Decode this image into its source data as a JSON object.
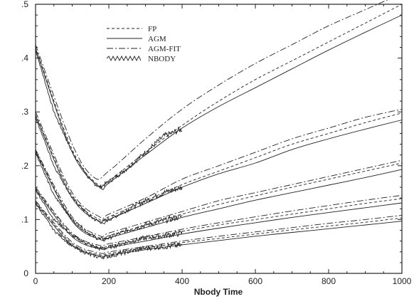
{
  "chart_data": {
    "type": "line",
    "title": "",
    "xlabel": "Nbody Time",
    "ylabel": "",
    "xlim": [
      0,
      1000
    ],
    "ylim": [
      0,
      0.5
    ],
    "x_ticks": [
      0,
      200,
      400,
      600,
      800,
      1000
    ],
    "y_ticks": [
      0,
      0.1,
      0.2,
      0.3,
      0.4,
      0.5
    ],
    "x_tick_labels": [
      "0",
      "200",
      "400",
      "600",
      "800",
      "1000"
    ],
    "y_tick_labels": [
      "0",
      ".1",
      ".2",
      ".3",
      ".4",
      ".5"
    ],
    "grid": false,
    "legend_position": "top-left",
    "legend": [
      {
        "key": "fp",
        "label": "FP",
        "style": "dashed"
      },
      {
        "key": "agm",
        "label": "AGM",
        "style": "solid"
      },
      {
        "key": "agmfit",
        "label": "AGM-FIT",
        "style": "dash-dot"
      },
      {
        "key": "nbody",
        "label": "NBODY",
        "style": "noisy"
      }
    ],
    "groups": [
      {
        "agmfit": {
          "x": [
            0,
            100,
            160,
            200,
            300,
            400,
            500,
            600,
            700,
            800,
            900,
            1000
          ],
          "y": [
            0.425,
            0.24,
            0.178,
            0.19,
            0.25,
            0.305,
            0.35,
            0.39,
            0.425,
            0.46,
            0.49,
            0.52
          ]
        },
        "fp": {
          "x": [
            0,
            100,
            170,
            200,
            300,
            400,
            500,
            600,
            700,
            800,
            900,
            1000
          ],
          "y": [
            0.42,
            0.23,
            0.165,
            0.172,
            0.225,
            0.275,
            0.32,
            0.36,
            0.395,
            0.43,
            0.465,
            0.5
          ]
        },
        "agm": {
          "x": [
            0,
            100,
            175,
            200,
            300,
            400,
            500,
            600,
            700,
            800,
            900,
            1000
          ],
          "y": [
            0.418,
            0.225,
            0.16,
            0.168,
            0.22,
            0.27,
            0.31,
            0.345,
            0.38,
            0.415,
            0.448,
            0.48
          ]
        },
        "nbody": {
          "x": [
            0,
            50,
            100,
            150,
            175,
            200,
            250,
            300,
            350,
            400
          ],
          "y": [
            0.415,
            0.3,
            0.225,
            0.172,
            0.16,
            0.17,
            0.195,
            0.225,
            0.255,
            0.268
          ]
        }
      },
      {
        "agmfit": {
          "x": [
            0,
            100,
            175,
            200,
            300,
            400,
            500,
            600,
            700,
            800,
            900,
            1000
          ],
          "y": [
            0.3,
            0.15,
            0.105,
            0.11,
            0.14,
            0.175,
            0.2,
            0.225,
            0.25,
            0.27,
            0.29,
            0.305
          ]
        },
        "fp": {
          "x": [
            0,
            100,
            175,
            200,
            300,
            400,
            500,
            600,
            700,
            800,
            900,
            1000
          ],
          "y": [
            0.295,
            0.145,
            0.1,
            0.105,
            0.135,
            0.165,
            0.19,
            0.215,
            0.24,
            0.26,
            0.28,
            0.298
          ]
        },
        "agm": {
          "x": [
            0,
            100,
            180,
            200,
            300,
            400,
            500,
            600,
            700,
            800,
            900,
            1000
          ],
          "y": [
            0.293,
            0.14,
            0.095,
            0.1,
            0.13,
            0.16,
            0.185,
            0.205,
            0.23,
            0.25,
            0.268,
            0.285
          ]
        },
        "nbody": {
          "x": [
            0,
            50,
            100,
            150,
            175,
            200,
            250,
            300,
            350,
            400
          ],
          "y": [
            0.29,
            0.2,
            0.14,
            0.105,
            0.095,
            0.1,
            0.118,
            0.135,
            0.15,
            0.16
          ]
        }
      },
      {
        "agmfit": {
          "x": [
            0,
            100,
            175,
            200,
            300,
            400,
            500,
            600,
            700,
            800,
            900,
            1000
          ],
          "y": [
            0.23,
            0.105,
            0.07,
            0.075,
            0.095,
            0.115,
            0.135,
            0.15,
            0.165,
            0.18,
            0.195,
            0.21
          ]
        },
        "fp": {
          "x": [
            0,
            100,
            175,
            200,
            300,
            400,
            500,
            600,
            700,
            800,
            900,
            1000
          ],
          "y": [
            0.228,
            0.1,
            0.066,
            0.07,
            0.09,
            0.11,
            0.128,
            0.144,
            0.16,
            0.175,
            0.19,
            0.205
          ]
        },
        "agm": {
          "x": [
            0,
            100,
            180,
            200,
            300,
            400,
            500,
            600,
            700,
            800,
            900,
            1000
          ],
          "y": [
            0.226,
            0.097,
            0.062,
            0.066,
            0.085,
            0.104,
            0.12,
            0.136,
            0.15,
            0.164,
            0.178,
            0.193
          ]
        },
        "nbody": {
          "x": [
            0,
            50,
            100,
            150,
            175,
            200,
            250,
            300,
            350,
            400
          ],
          "y": [
            0.225,
            0.145,
            0.1,
            0.072,
            0.063,
            0.066,
            0.08,
            0.09,
            0.098,
            0.106
          ]
        }
      },
      {
        "agmfit": {
          "x": [
            0,
            100,
            175,
            200,
            300,
            400,
            500,
            600,
            700,
            800,
            900,
            1000
          ],
          "y": [
            0.16,
            0.075,
            0.052,
            0.055,
            0.068,
            0.082,
            0.094,
            0.105,
            0.116,
            0.126,
            0.136,
            0.145
          ]
        },
        "fp": {
          "x": [
            0,
            100,
            175,
            200,
            300,
            400,
            500,
            600,
            700,
            800,
            900,
            1000
          ],
          "y": [
            0.158,
            0.072,
            0.048,
            0.051,
            0.064,
            0.078,
            0.09,
            0.1,
            0.11,
            0.12,
            0.13,
            0.139
          ]
        },
        "agm": {
          "x": [
            0,
            100,
            180,
            200,
            300,
            400,
            500,
            600,
            700,
            800,
            900,
            1000
          ],
          "y": [
            0.156,
            0.068,
            0.045,
            0.048,
            0.06,
            0.073,
            0.084,
            0.094,
            0.104,
            0.113,
            0.122,
            0.131
          ]
        },
        "nbody": {
          "x": [
            0,
            50,
            100,
            150,
            175,
            200,
            250,
            300,
            350,
            400
          ],
          "y": [
            0.155,
            0.1,
            0.07,
            0.052,
            0.046,
            0.048,
            0.058,
            0.066,
            0.07,
            0.075
          ]
        }
      },
      {
        "agmfit": {
          "x": [
            0,
            100,
            175,
            200,
            300,
            400,
            500,
            600,
            700,
            800,
            900,
            1000
          ],
          "y": [
            0.135,
            0.058,
            0.038,
            0.04,
            0.05,
            0.06,
            0.069,
            0.077,
            0.085,
            0.093,
            0.1,
            0.108
          ]
        },
        "fp": {
          "x": [
            0,
            100,
            175,
            200,
            300,
            400,
            500,
            600,
            700,
            800,
            900,
            1000
          ],
          "y": [
            0.133,
            0.055,
            0.035,
            0.037,
            0.047,
            0.057,
            0.065,
            0.073,
            0.081,
            0.088,
            0.095,
            0.103
          ]
        },
        "agm": {
          "x": [
            0,
            100,
            180,
            200,
            300,
            400,
            500,
            600,
            700,
            800,
            900,
            1000
          ],
          "y": [
            0.131,
            0.052,
            0.032,
            0.034,
            0.044,
            0.053,
            0.061,
            0.069,
            0.076,
            0.083,
            0.09,
            0.097
          ]
        },
        "nbody": {
          "x": [
            0,
            50,
            100,
            150,
            175,
            200,
            250,
            300,
            350,
            400
          ],
          "y": [
            0.13,
            0.08,
            0.05,
            0.034,
            0.03,
            0.032,
            0.04,
            0.047,
            0.05,
            0.052
          ]
        }
      }
    ]
  }
}
